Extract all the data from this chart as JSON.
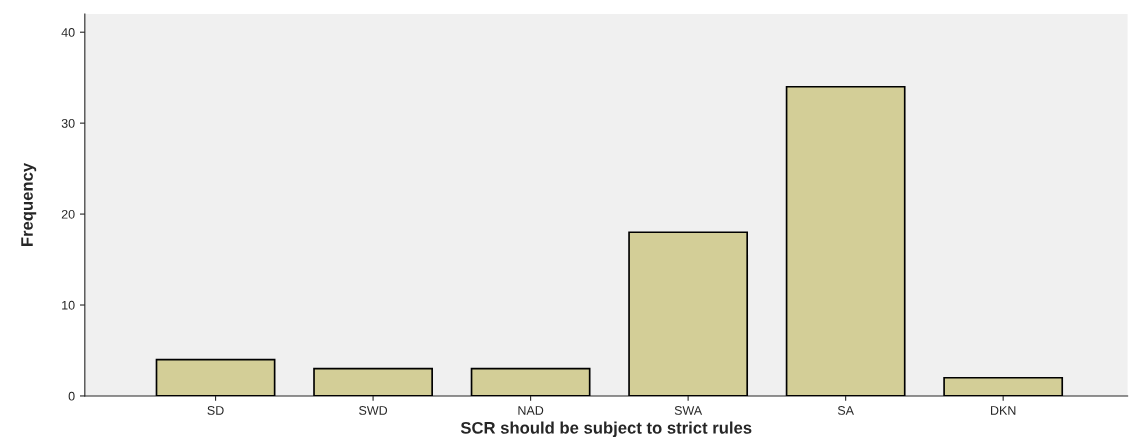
{
  "chart_data": {
    "type": "bar",
    "xlabel": "SCR should be subject to strict rules",
    "ylabel": "Frequency",
    "categories": [
      "SD",
      "SWD",
      "NAD",
      "SWA",
      "SA",
      "DKN"
    ],
    "values": [
      4,
      3,
      3,
      18,
      34,
      2
    ],
    "color": "#d3ce97",
    "ylim": [
      0,
      42
    ],
    "yticks": [
      0,
      10,
      20,
      30,
      40
    ],
    "grid": false,
    "legend": false
  }
}
